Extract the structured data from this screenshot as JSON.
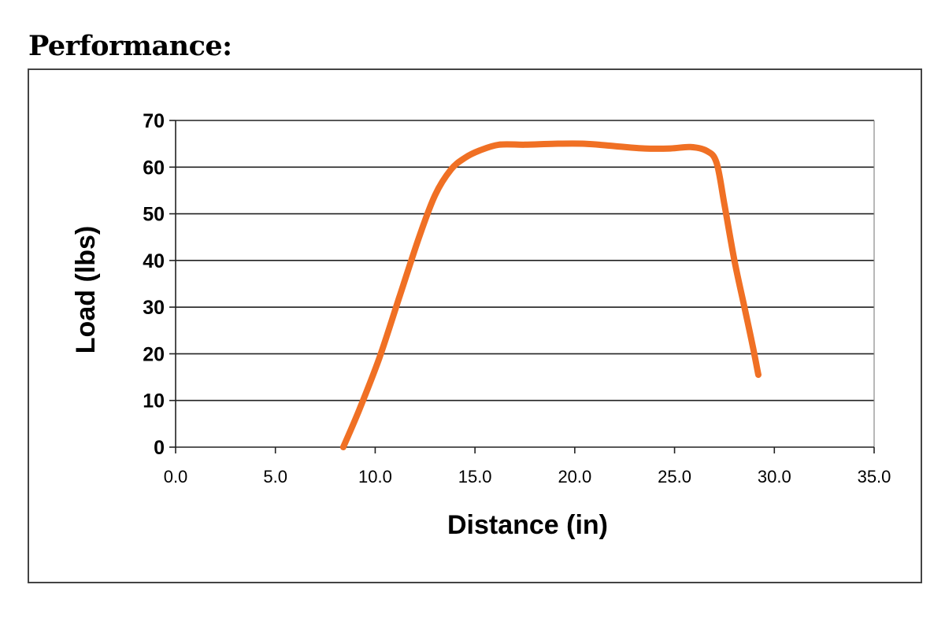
{
  "heading": "Performance:",
  "chart_data": {
    "type": "line",
    "title": "",
    "xlabel": "Distance (in)",
    "ylabel": "Load (lbs)",
    "xlim": [
      0,
      35
    ],
    "ylim": [
      0,
      70
    ],
    "x_ticks": [
      "0.0",
      "5.0",
      "10.0",
      "15.0",
      "20.0",
      "25.0",
      "30.0",
      "35.0"
    ],
    "y_ticks": [
      "0",
      "10",
      "20",
      "30",
      "40",
      "50",
      "60",
      "70"
    ],
    "grid": "horizontal",
    "legend": "none",
    "series": [
      {
        "color": "#F07024",
        "x": [
          8.4,
          9.2,
          10.2,
          11.2,
          12.2,
          13.0,
          13.8,
          14.5,
          15.2,
          16.2,
          17.5,
          19.0,
          20.5,
          22.0,
          23.5,
          24.8,
          25.8,
          26.6,
          27.1,
          27.5,
          28.0,
          28.5,
          28.9,
          29.2
        ],
        "y": [
          0,
          8,
          19,
          32,
          45,
          54,
          59.5,
          62,
          63.5,
          64.8,
          64.8,
          65,
          65,
          64.5,
          64,
          64,
          64.3,
          63.5,
          61,
          52,
          40,
          30,
          22,
          15.5
        ]
      }
    ]
  }
}
